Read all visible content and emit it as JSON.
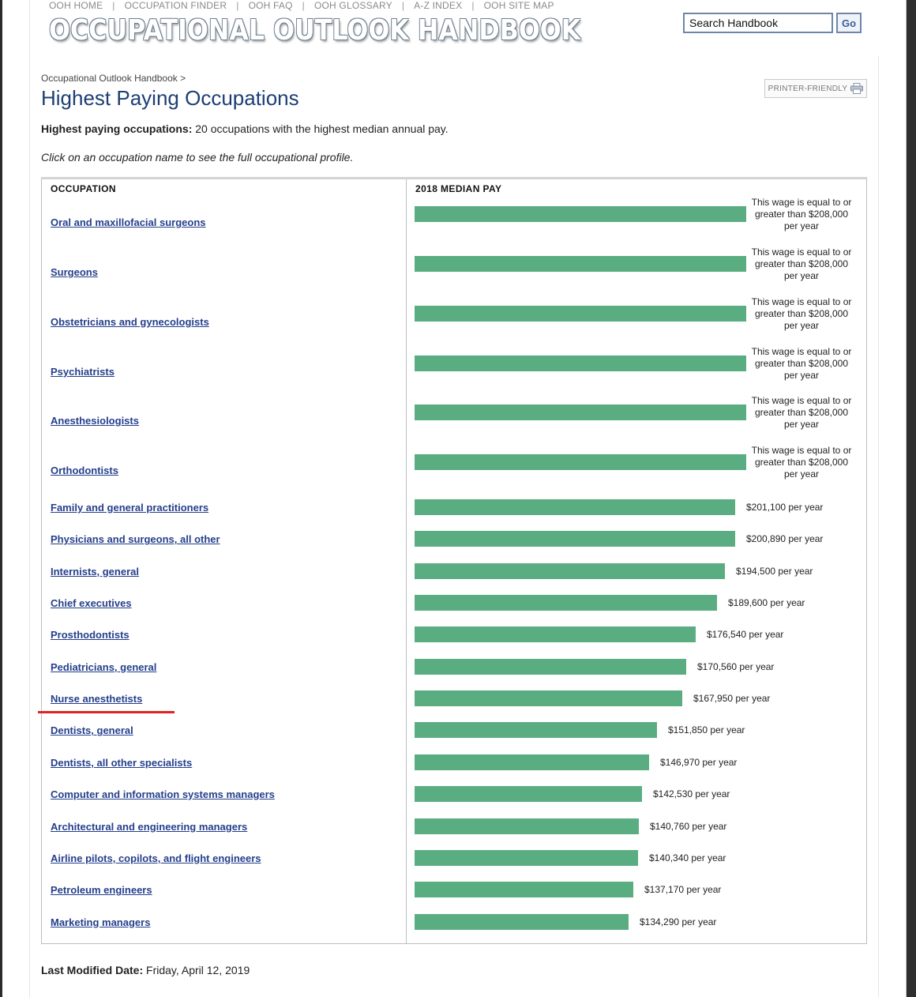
{
  "top_nav": [
    "OOH HOME",
    "OCCUPATION FINDER",
    "OOH FAQ",
    "OOH GLOSSARY",
    "A-Z INDEX",
    "OOH SITE MAP"
  ],
  "logo_text": "OCCUPATIONAL OUTLOOK HANDBOOK",
  "search": {
    "value": "Search Handbook",
    "go_label": "Go"
  },
  "breadcrumb": "Occupational Outlook Handbook >",
  "page_title": "Highest Paying Occupations",
  "printer_label": "PRINTER-FRIENDLY",
  "intro": {
    "bold": "Highest paying occupations:",
    "text": " 20 occupations with the highest median annual pay."
  },
  "hint": "Click on an occupation name to see the full occupational profile.",
  "table": {
    "col_occupation": "OCCUPATION",
    "col_pay": "2018 MEDIAN PAY",
    "rows": [
      {
        "name": "Oral and maxillofacial surgeons",
        "pay": 208000,
        "label": "This wage is equal to or greater than $208,000 per year"
      },
      {
        "name": "Surgeons",
        "pay": 208000,
        "label": "This wage is equal to or greater than $208,000 per year"
      },
      {
        "name": "Obstetricians and gynecologists",
        "pay": 208000,
        "label": "This wage is equal to or greater than $208,000 per year"
      },
      {
        "name": "Psychiatrists",
        "pay": 208000,
        "label": "This wage is equal to or greater than $208,000 per year"
      },
      {
        "name": "Anesthesiologists",
        "pay": 208000,
        "label": "This wage is equal to or greater than $208,000 per year"
      },
      {
        "name": "Orthodontists",
        "pay": 208000,
        "label": "This wage is equal to or greater than $208,000 per year"
      },
      {
        "name": "Family and general practitioners",
        "pay": 201100,
        "label": "$201,100 per year"
      },
      {
        "name": "Physicians and surgeons, all other",
        "pay": 200890,
        "label": "$200,890 per year"
      },
      {
        "name": "Internists, general",
        "pay": 194500,
        "label": "$194,500 per year"
      },
      {
        "name": "Chief executives",
        "pay": 189600,
        "label": "$189,600 per year"
      },
      {
        "name": "Prosthodontists",
        "pay": 176540,
        "label": "$176,540 per year"
      },
      {
        "name": "Pediatricians, general",
        "pay": 170560,
        "label": "$170,560 per year"
      },
      {
        "name": "Nurse anesthetists",
        "pay": 167950,
        "label": "$167,950 per year"
      },
      {
        "name": "Dentists, general",
        "pay": 151850,
        "label": "$151,850 per year"
      },
      {
        "name": "Dentists, all other specialists",
        "pay": 146970,
        "label": "$146,970 per year"
      },
      {
        "name": "Computer and information systems managers",
        "pay": 142530,
        "label": "$142,530 per year"
      },
      {
        "name": "Architectural and engineering managers",
        "pay": 140760,
        "label": "$140,760 per year"
      },
      {
        "name": "Airline pilots, copilots, and flight engineers",
        "pay": 140340,
        "label": "$140,340 per year"
      },
      {
        "name": "Petroleum engineers",
        "pay": 137170,
        "label": "$137,170 per year"
      },
      {
        "name": "Marketing managers",
        "pay": 134290,
        "label": "$134,290 per year"
      }
    ]
  },
  "modified": {
    "bold": "Last Modified Date:",
    "text": " Friday, April 12, 2019"
  },
  "colors": {
    "bar": "#5aad80",
    "link": "#243f8c",
    "title": "#1d3e74",
    "annotation": "#e02222"
  }
}
